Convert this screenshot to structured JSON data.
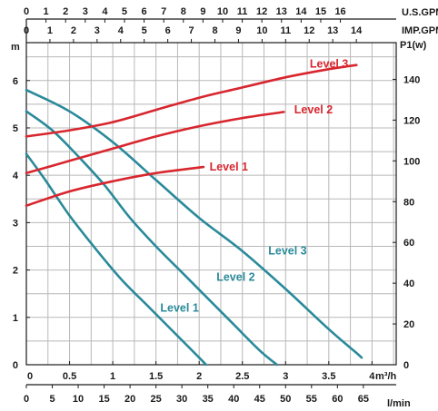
{
  "chart_data": {
    "type": "line",
    "units": {
      "usgpm": "U.S.GPM",
      "impgpm": "IMP.GPM",
      "head": "m",
      "power": "P1(w)",
      "flow": "m³/h",
      "lmin": "l/min"
    },
    "axes": {
      "flow_m3h": {
        "range": [
          0,
          4.28
        ],
        "ticks": [
          0,
          0.5,
          1,
          1.5,
          2,
          2.5,
          3,
          3.5,
          4
        ]
      },
      "head_m": {
        "range": [
          0,
          6.8
        ],
        "ticks": [
          0,
          1,
          2,
          3,
          4,
          5,
          6
        ]
      },
      "power_w": {
        "range": [
          0,
          158
        ],
        "ticks": [
          0,
          20,
          40,
          60,
          80,
          100,
          120,
          140
        ]
      },
      "us_gpm": {
        "ticks": [
          0,
          1,
          2,
          3,
          4,
          5,
          6,
          7,
          8,
          9,
          10,
          11,
          12,
          13,
          14,
          15,
          16
        ]
      },
      "imp_gpm": {
        "ticks": [
          0,
          1,
          2,
          3,
          4,
          5,
          6,
          7,
          8,
          9,
          10,
          11,
          12,
          13,
          14
        ]
      },
      "l_min": {
        "ticks": [
          0,
          5,
          10,
          15,
          20,
          25,
          30,
          35,
          40,
          45,
          50,
          55,
          60,
          65
        ]
      }
    },
    "grid": true,
    "head_series": [
      {
        "name": "Level 1",
        "axis": "head",
        "color": "#2a8a9a",
        "x": [
          0,
          0.2,
          0.5,
          0.8,
          1.1,
          1.4,
          1.7,
          2.0,
          2.08
        ],
        "y": [
          4.45,
          3.95,
          3.15,
          2.45,
          1.8,
          1.25,
          0.7,
          0.15,
          0
        ]
      },
      {
        "name": "Level 2",
        "axis": "head",
        "color": "#2a8a9a",
        "x": [
          0,
          0.3,
          0.6,
          0.9,
          1.2,
          1.5,
          1.8,
          2.1,
          2.4,
          2.7,
          2.9
        ],
        "y": [
          5.35,
          4.95,
          4.4,
          3.8,
          3.1,
          2.5,
          1.95,
          1.4,
          0.85,
          0.3,
          0
        ]
      },
      {
        "name": "Level 3",
        "axis": "head",
        "color": "#2a8a9a",
        "x": [
          0,
          0.5,
          1.0,
          1.5,
          2.0,
          2.5,
          3.0,
          3.5,
          3.8,
          3.88
        ],
        "y": [
          5.8,
          5.35,
          4.7,
          3.9,
          3.1,
          2.4,
          1.6,
          0.75,
          0.28,
          0.15
        ]
      }
    ],
    "power_series": [
      {
        "name": "Level 1",
        "axis": "power",
        "color": "#d8262e",
        "x": [
          0,
          0.5,
          1.0,
          1.5,
          2.05
        ],
        "y": [
          78,
          85,
          90,
          94,
          97
        ]
      },
      {
        "name": "Level 2",
        "axis": "power",
        "color": "#d8262e",
        "x": [
          0,
          0.5,
          1.0,
          1.5,
          2.0,
          2.5,
          2.98
        ],
        "y": [
          94,
          100,
          106,
          112,
          117,
          121,
          124
        ]
      },
      {
        "name": "Level 3",
        "axis": "power",
        "color": "#d8262e",
        "x": [
          0,
          0.5,
          1.0,
          1.5,
          2.0,
          2.5,
          3.0,
          3.5,
          3.82
        ],
        "y": [
          112,
          115,
          119,
          125,
          131,
          136,
          141,
          145,
          147
        ]
      }
    ],
    "labels": [
      {
        "text": "Level 3",
        "series": "power",
        "x": 3.28,
        "y": 147.5,
        "color": "#d8262e"
      },
      {
        "text": "Level 2",
        "series": "power",
        "x": 3.1,
        "y": 125,
        "color": "#d8262e"
      },
      {
        "text": "Level 1",
        "series": "power",
        "x": 2.12,
        "y": 97,
        "color": "#d8262e"
      },
      {
        "text": "Level 3",
        "series": "head",
        "x": 2.8,
        "y": 2.4,
        "color": "#2a8a9a"
      },
      {
        "text": "Level 2",
        "series": "head",
        "x": 2.2,
        "y": 1.85,
        "color": "#2a8a9a"
      },
      {
        "text": "Level 1",
        "series": "head",
        "x": 1.55,
        "y": 1.2,
        "color": "#2a8a9a"
      }
    ]
  }
}
